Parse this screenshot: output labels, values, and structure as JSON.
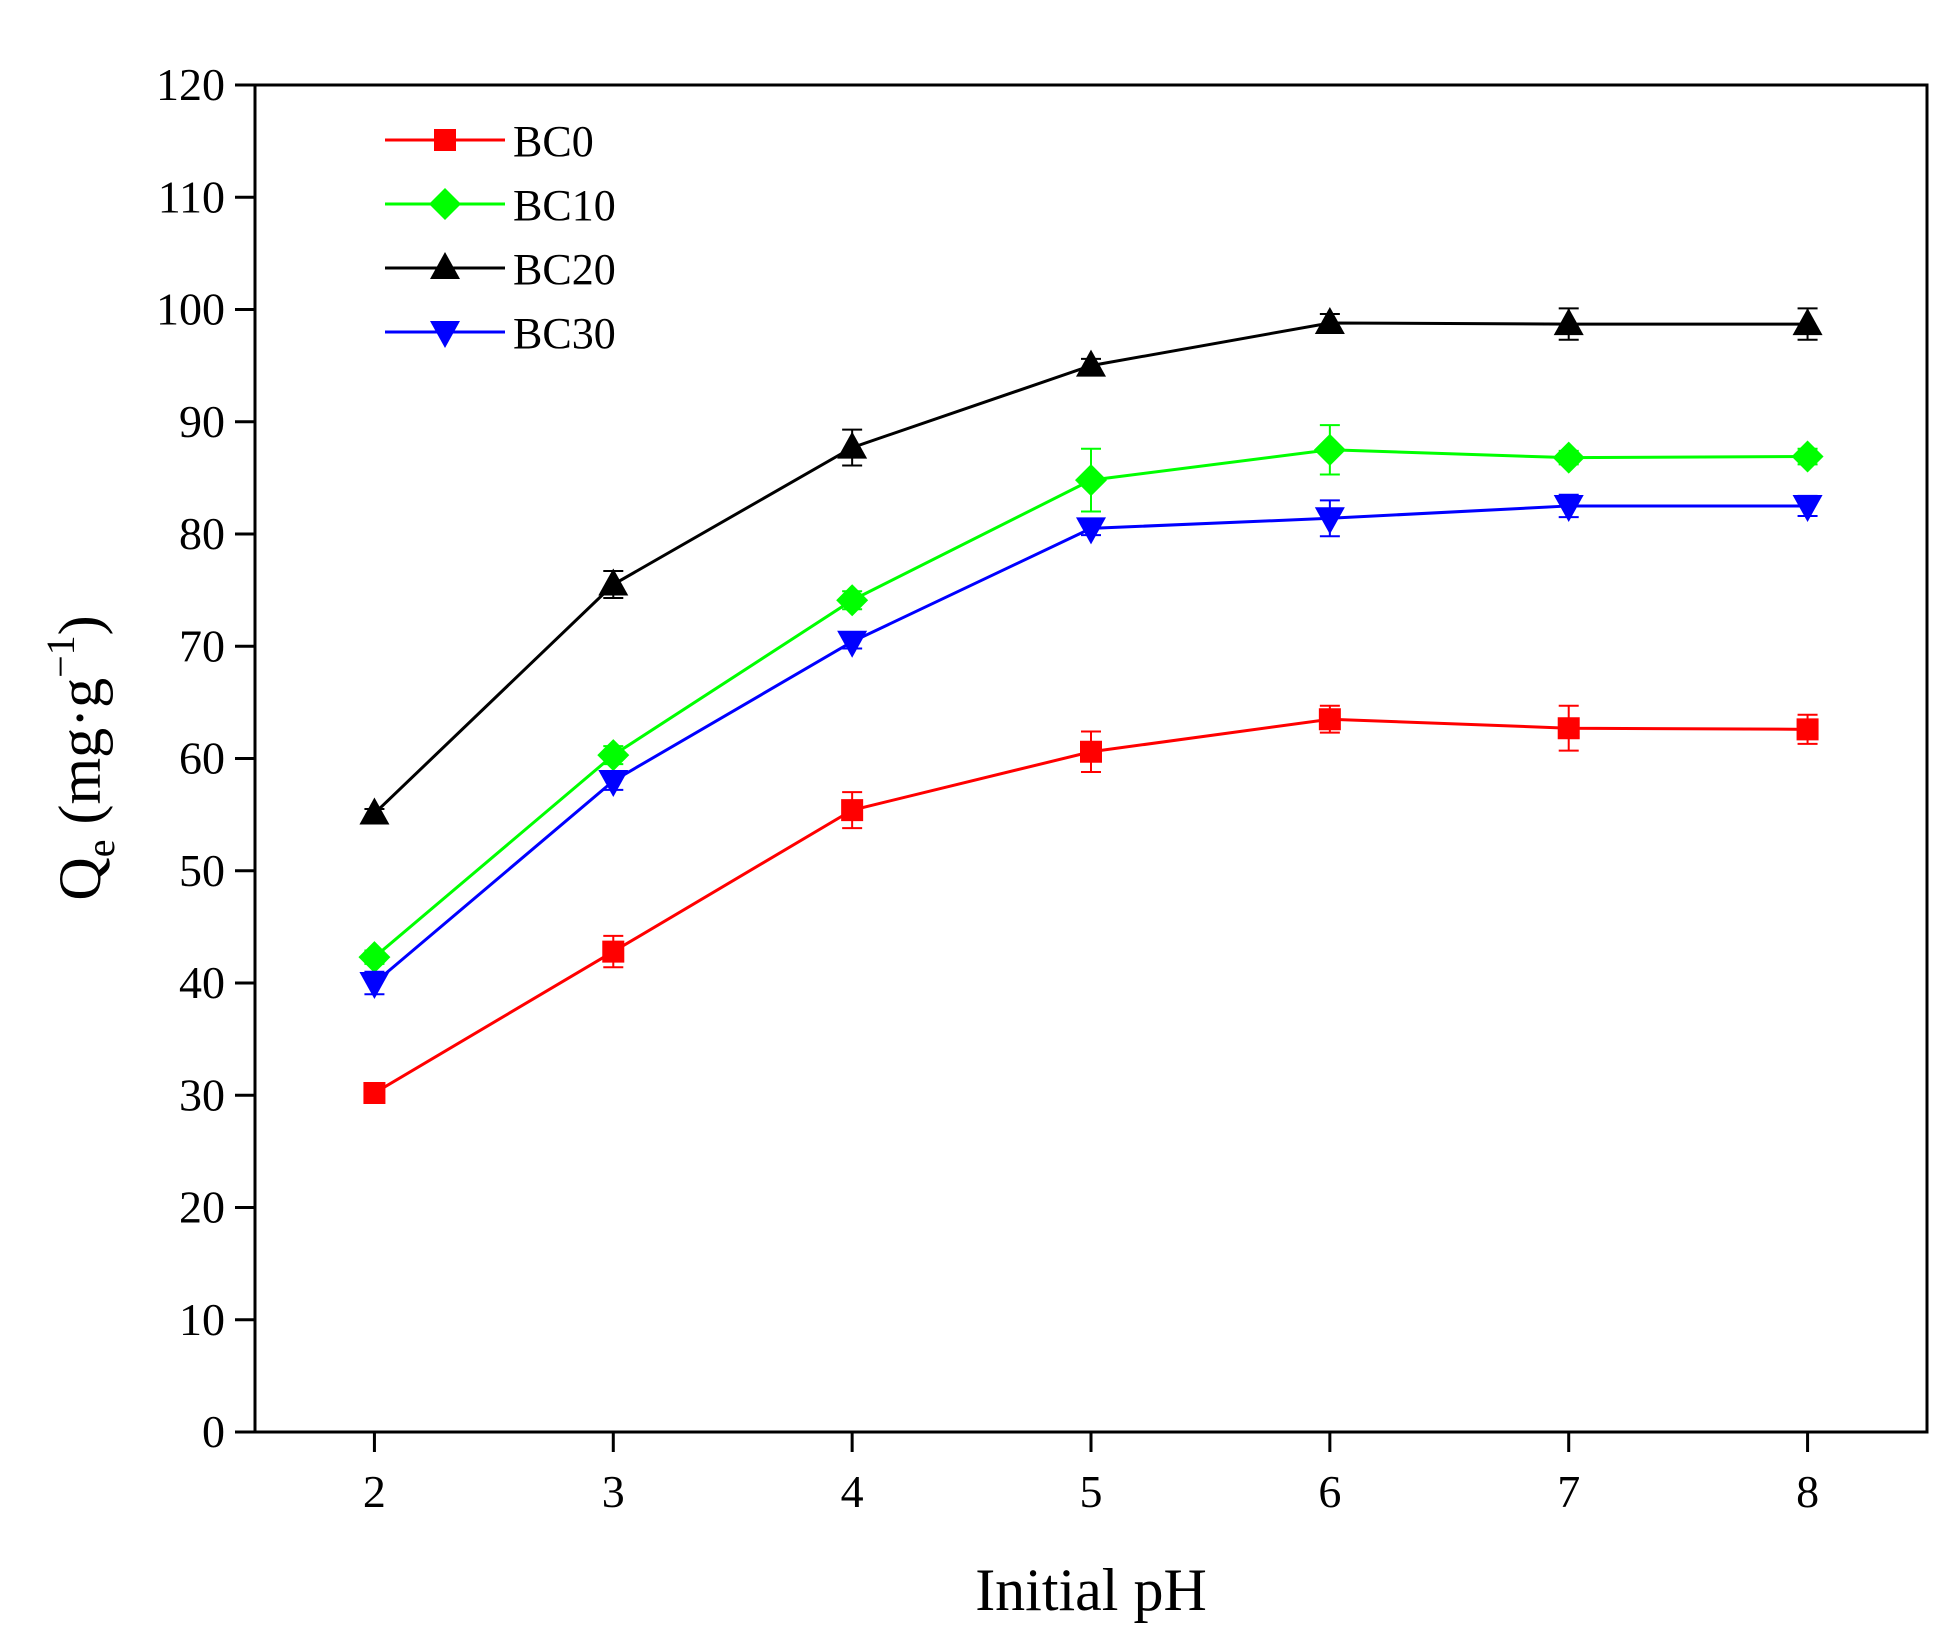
{
  "chart_data": {
    "type": "line",
    "title": "",
    "xlabel": "Initial pH",
    "ylabel_main": "Q",
    "ylabel_sub": "e",
    "ylabel_units_open": " (mg·g",
    "ylabel_units_sup": "−1",
    "ylabel_units_close": ")",
    "xlim": [
      1.5,
      8.5
    ],
    "ylim": [
      0,
      120
    ],
    "xticks": [
      2,
      3,
      4,
      5,
      6,
      7,
      8
    ],
    "yticks": [
      0,
      10,
      20,
      30,
      40,
      50,
      60,
      70,
      80,
      90,
      100,
      110,
      120
    ],
    "grid": false,
    "legend_position": "top-left",
    "x": [
      2,
      3,
      4,
      5,
      6,
      7,
      8
    ],
    "series": [
      {
        "name": "BC0",
        "color": "#ff0000",
        "marker": "square",
        "values": [
          30.2,
          42.8,
          55.4,
          60.6,
          63.5,
          62.7,
          62.6
        ],
        "errors": [
          0.5,
          1.4,
          1.6,
          1.8,
          1.2,
          2.0,
          1.3
        ]
      },
      {
        "name": "BC10",
        "color": "#00ff00",
        "marker": "diamond",
        "values": [
          42.3,
          60.3,
          74.1,
          84.8,
          87.5,
          86.8,
          86.9
        ],
        "errors": [
          0.6,
          0.8,
          0.8,
          2.8,
          2.2,
          0.6,
          0.7
        ]
      },
      {
        "name": "BC20",
        "color": "#000000",
        "marker": "triangle-up",
        "values": [
          55.1,
          75.5,
          87.7,
          95.0,
          98.8,
          98.7,
          98.7
        ],
        "errors": [
          0.4,
          1.2,
          1.6,
          0.6,
          0.8,
          1.4,
          1.4
        ]
      },
      {
        "name": "BC30",
        "color": "#0000ff",
        "marker": "triangle-down",
        "values": [
          40.0,
          58.0,
          70.4,
          80.5,
          81.4,
          82.5,
          82.5
        ],
        "errors": [
          1.0,
          0.8,
          0.6,
          0.6,
          1.6,
          1.0,
          0.9
        ]
      }
    ]
  }
}
